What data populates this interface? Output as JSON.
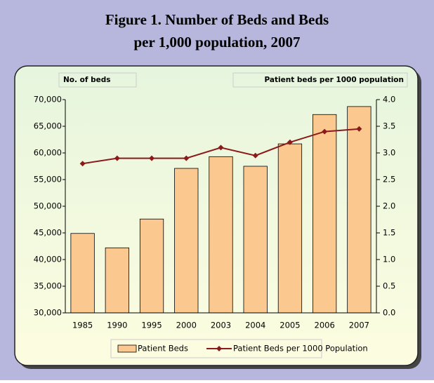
{
  "chart_data": {
    "type": "bar",
    "title": [
      "Figure 1. Number of Beds and Beds",
      "per 1,000 population, 2007"
    ],
    "y_label": "No. of beds",
    "y2_label": "Patient beds per 1000 population",
    "categories": [
      "1985",
      "1990",
      "1995",
      "2000",
      "2003",
      "2004",
      "2005",
      "2006",
      "2007"
    ],
    "series": [
      {
        "name": "Patient Beds",
        "type": "bar",
        "color": "#fbc98f",
        "axis": "y",
        "values": [
          44900,
          42200,
          47600,
          57100,
          59300,
          57500,
          61700,
          67200,
          68700
        ]
      },
      {
        "name": "Patient Beds per 1000 Population",
        "type": "line",
        "color": "#8b1a1a",
        "axis": "y2",
        "values": [
          2.8,
          2.9,
          2.9,
          2.9,
          3.1,
          2.95,
          3.2,
          3.4,
          3.45
        ]
      }
    ],
    "ylim": [
      30000,
      70000
    ],
    "yticks": [
      {
        "value": 30000,
        "label": "30,000"
      },
      {
        "value": 35000,
        "label": "35,000"
      },
      {
        "value": 40000,
        "label": "40,000"
      },
      {
        "value": 45000,
        "label": "45,000"
      },
      {
        "value": 50000,
        "label": "50,000"
      },
      {
        "value": 55000,
        "label": "55,000"
      },
      {
        "value": 60000,
        "label": "60,000"
      },
      {
        "value": 65000,
        "label": "65,000"
      },
      {
        "value": 70000,
        "label": "70,000"
      }
    ],
    "y2lim": [
      0,
      4
    ],
    "y2ticks": [
      {
        "value": 0,
        "label": "0.0"
      },
      0.5,
      {
        "value": 1,
        "label": "1.0"
      },
      1.5,
      {
        "value": 2,
        "label": "2.0"
      },
      2.5,
      {
        "value": 3,
        "label": "3.0"
      },
      3.5,
      {
        "value": 4,
        "label": "4.0"
      }
    ],
    "legend": "bottom"
  }
}
